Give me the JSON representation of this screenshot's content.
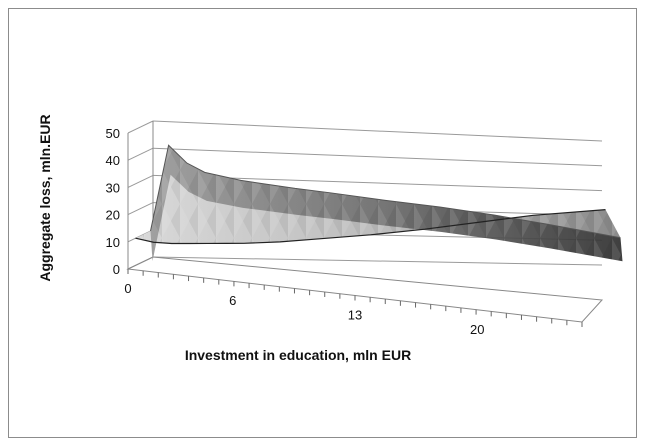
{
  "chart_data": {
    "type": "surface",
    "title": "",
    "xlabel": "Investment in education, mln EUR",
    "ylabel": "Aggregate loss, mln.EUR",
    "ylim": [
      0,
      50
    ],
    "y_ticks": [
      "0",
      "10",
      "20",
      "30",
      "40",
      "50"
    ],
    "x_ticks": [
      "0",
      "6",
      "13",
      "20"
    ],
    "x_range": [
      0,
      26
    ],
    "grid": true,
    "legend": "none",
    "series": [
      {
        "x": [
          0,
          1,
          2,
          3,
          4,
          5,
          6,
          8,
          10,
          13,
          16,
          19,
          22,
          26
        ],
        "values": [
          10,
          42,
          36,
          33,
          32,
          31,
          30.5,
          29.5,
          28.8,
          27.5,
          26.5,
          25,
          23,
          20
        ]
      },
      {
        "x": [
          0,
          1,
          2,
          3,
          4,
          5,
          6,
          8,
          10,
          13,
          16,
          19,
          22,
          26
        ],
        "values": [
          10,
          9,
          9,
          9.5,
          10,
          10.5,
          11,
          12.5,
          14.5,
          17.5,
          21,
          25,
          29,
          33
        ]
      }
    ],
    "colors": {
      "surface_dark": "#3a3a3a",
      "surface_mid": "#7a7a7a",
      "surface_light": "#c4c4c4",
      "gridline": "#9a9a9a",
      "frame": "#8c8c8c"
    }
  }
}
